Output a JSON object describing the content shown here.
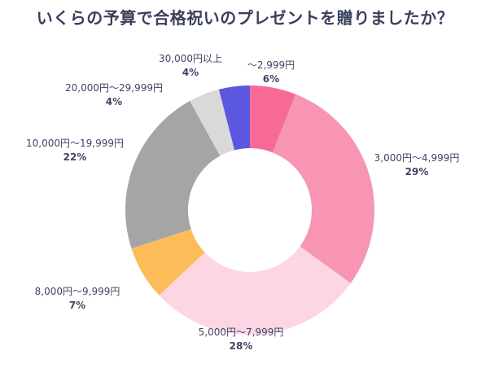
{
  "chart_data": {
    "type": "pie",
    "donut": true,
    "title": "いくらの予算で合格祝いのプレゼントを贈りましたか？",
    "categories": [
      "～2,999円",
      "3,000円～4,999円",
      "5,000円～7,999円",
      "8,000円～9,999円",
      "10,000円～19,999円",
      "20,000円～29,999円",
      "30,000円以上"
    ],
    "values": [
      6,
      29,
      28,
      7,
      22,
      4,
      4
    ],
    "value_labels": [
      "6%",
      "29%",
      "28%",
      "7%",
      "22%",
      "4%",
      "4%"
    ],
    "colors": [
      "#F86A96",
      "#F795B3",
      "#FDD6E4",
      "#FEBC59",
      "#A5A5A5",
      "#D9D9D9",
      "#5B57E0"
    ],
    "legend": "none"
  }
}
